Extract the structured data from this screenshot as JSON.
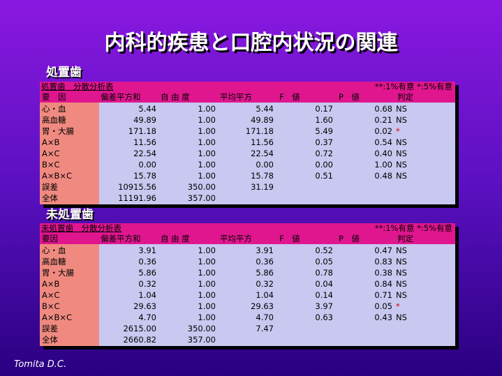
{
  "title": "内科的疾患と口腔内状況の関連",
  "sections": [
    {
      "heading": "処置歯",
      "table": {
        "caption": "処置歯　分散分析表",
        "note": "**:1%有意 *:5%有意",
        "header": [
          "要　因",
          "偏差平方和",
          "自 由 度",
          "平均平方",
          "F　値",
          "P　値",
          "判定"
        ],
        "rows": [
          [
            "心・血",
            "5.44",
            "1.00",
            "5.44",
            "0.17",
            "0.68",
            "NS"
          ],
          [
            "高血糖",
            "49.89",
            "1.00",
            "49.89",
            "1.60",
            "0.21",
            "NS"
          ],
          [
            "胃・大腸",
            "171.18",
            "1.00",
            "171.18",
            "5.49",
            "0.02",
            "*"
          ],
          [
            "A×B",
            "11.56",
            "1.00",
            "11.56",
            "0.37",
            "0.54",
            "NS"
          ],
          [
            "A×C",
            "22.54",
            "1.00",
            "22.54",
            "0.72",
            "0.40",
            "NS"
          ],
          [
            "B×C",
            "0.00",
            "1.00",
            "0.00",
            "0.00",
            "1.00",
            "NS"
          ],
          [
            "A×B×C",
            "15.78",
            "1.00",
            "15.78",
            "0.51",
            "0.48",
            "NS"
          ],
          [
            "誤差",
            "10915.56",
            "350.00",
            "31.19"
          ],
          [
            "全体",
            "11191.96",
            "357.00"
          ]
        ]
      }
    },
    {
      "heading": "未処置歯",
      "table": {
        "caption": "未処置歯　分散分析表",
        "note": "**:1%有意 *:5%有意",
        "header": [
          "要因",
          "偏差平方和",
          "自 由 度",
          "平均平方",
          "F　値",
          "P　値",
          "判定"
        ],
        "rows": [
          [
            "心・血",
            "3.91",
            "1.00",
            "3.91",
            "0.52",
            "0.47",
            "NS"
          ],
          [
            "高血糖",
            "0.36",
            "1.00",
            "0.36",
            "0.05",
            "0.83",
            "NS"
          ],
          [
            "胃・大腸",
            "5.86",
            "1.00",
            "5.86",
            "0.78",
            "0.38",
            "NS"
          ],
          [
            "A×B",
            "0.32",
            "1.00",
            "0.32",
            "0.04",
            "0.84",
            "NS"
          ],
          [
            "A×C",
            "1.04",
            "1.00",
            "1.04",
            "0.14",
            "0.71",
            "NS"
          ],
          [
            "B×C",
            "29.63",
            "1.00",
            "29.63",
            "3.97",
            "0.05",
            "*"
          ],
          [
            "A×B×C",
            "4.70",
            "1.00",
            "4.70",
            "0.63",
            "0.43",
            "NS"
          ],
          [
            "誤差",
            "2615.00",
            "350.00",
            "7.47"
          ],
          [
            "全体",
            "2660.82",
            "357.00"
          ]
        ]
      }
    }
  ],
  "footer": "Tomita D.C."
}
